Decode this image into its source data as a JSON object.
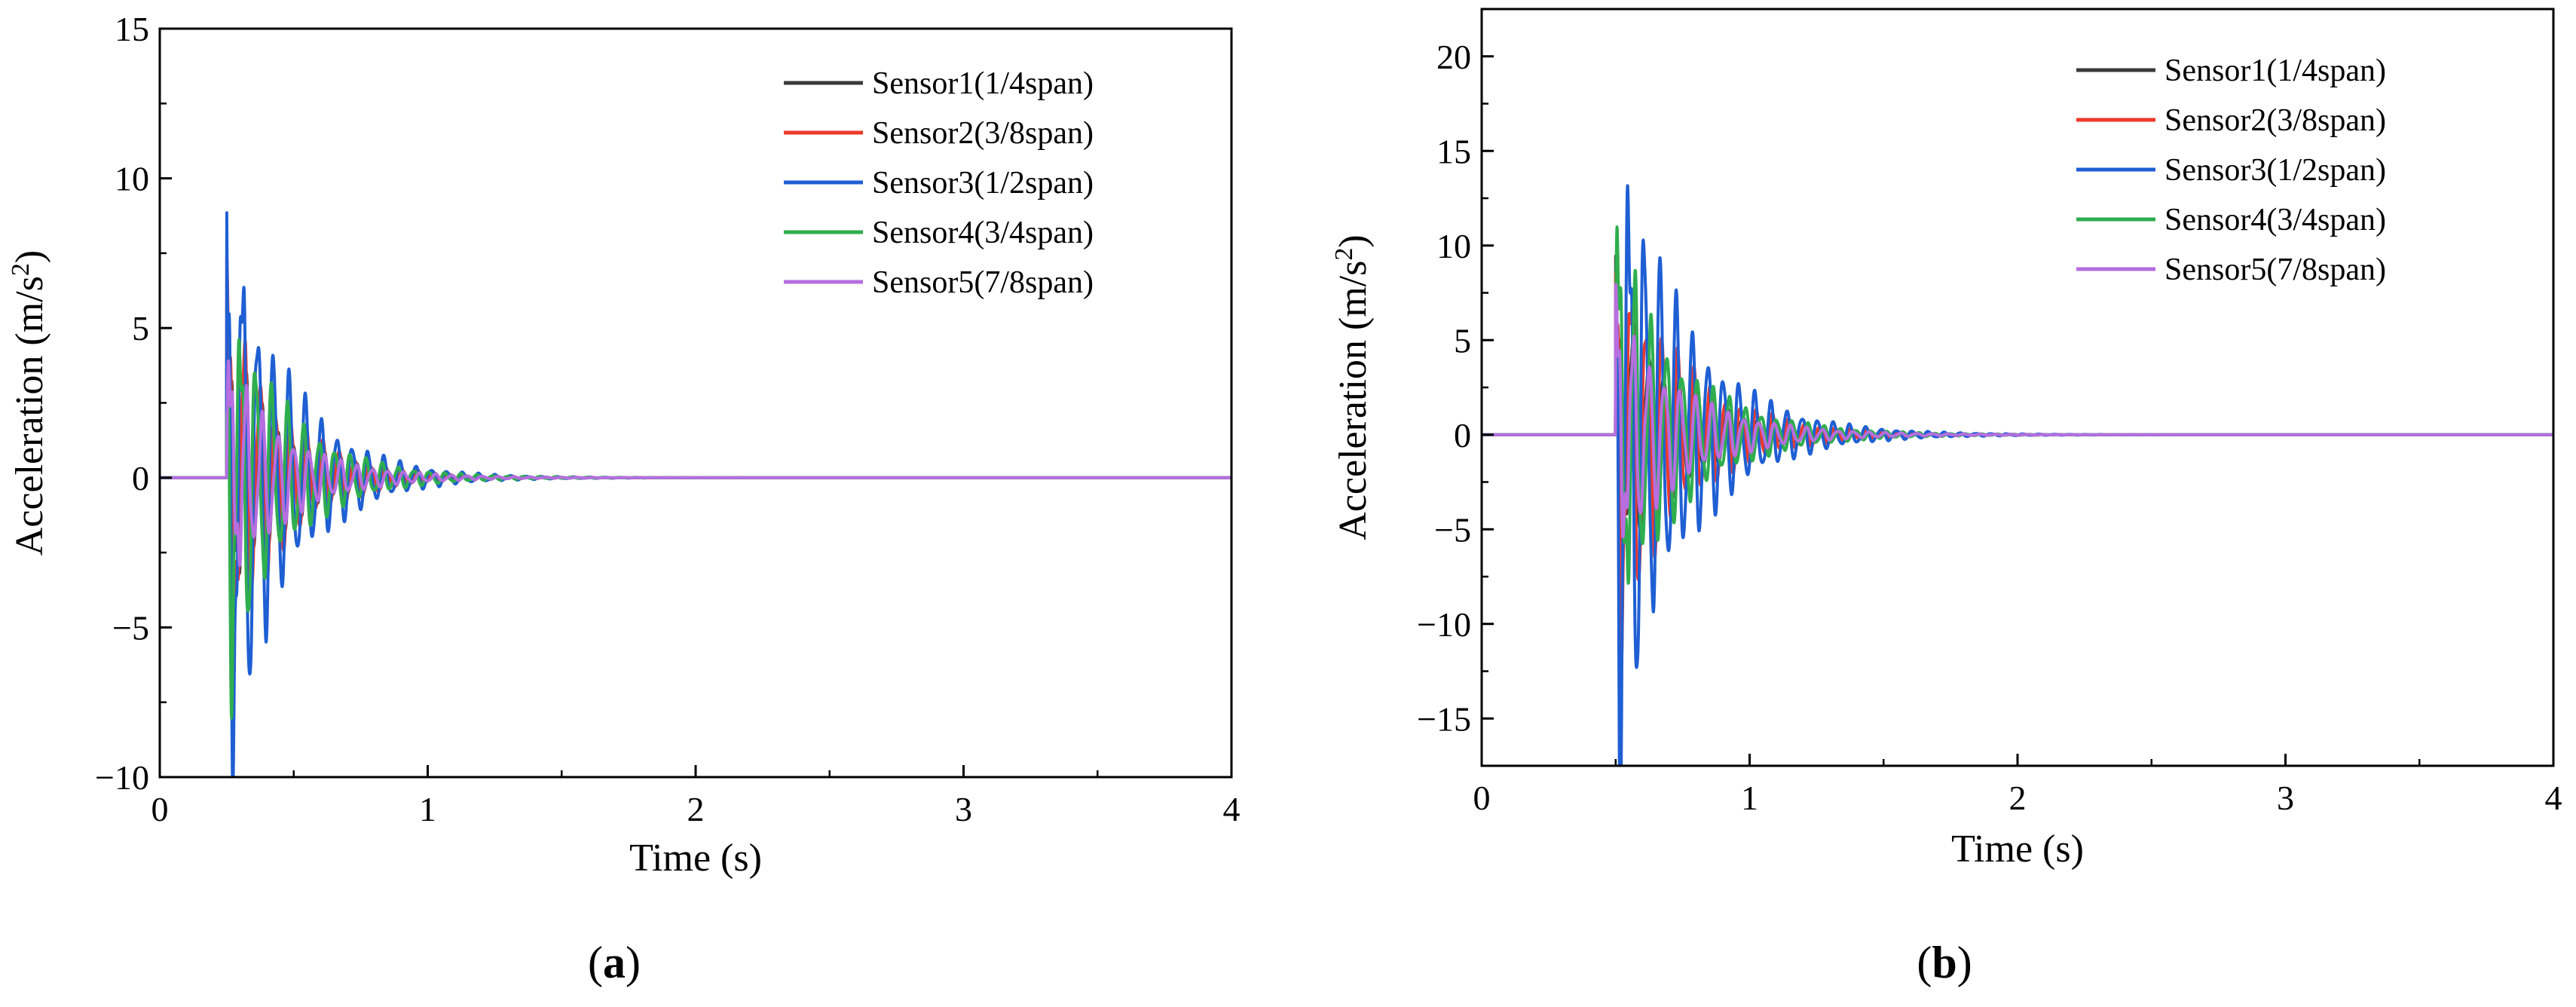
{
  "colors": {
    "sensor1": "#3a3a3a",
    "sensor2": "#ee3a2c",
    "sensor3": "#1f5fd4",
    "sensor4": "#2fae4e",
    "sensor5": "#b66ee0"
  },
  "chart_data": [
    {
      "type": "line",
      "panel_label": "a",
      "title": "",
      "xlabel": "Time (s)",
      "ylabel_main": "Acceleration (m/s",
      "ylabel_sup": "2",
      "ylabel_end": ")",
      "xlim": [
        0,
        4
      ],
      "ylim": [
        -10,
        15
      ],
      "xticks": [
        0,
        1,
        2,
        3,
        4
      ],
      "xtick_labels": [
        "0",
        "1",
        "2",
        "3",
        "4"
      ],
      "yticks": [
        -10,
        -5,
        0,
        5,
        10,
        15
      ],
      "ytick_labels": [
        "−10",
        "−5",
        "0",
        "5",
        "10",
        "15"
      ],
      "legend_position": "top-right",
      "series": [
        {
          "name": "Sensor1(1/4span)",
          "color_key": "sensor1",
          "impact_time": 0.25,
          "amplitude": 4.0,
          "freq_hz": 17,
          "decay": 4.5
        },
        {
          "name": "Sensor2(3/8span)",
          "color_key": "sensor2",
          "impact_time": 0.25,
          "amplitude": 5.5,
          "freq_hz": 17,
          "decay": 4.5
        },
        {
          "name": "Sensor3(1/2span)",
          "color_key": "sensor3",
          "impact_time": 0.25,
          "amplitude": 9.0,
          "freq_hz": 17,
          "decay": 4.5
        },
        {
          "name": "Sensor4(3/4span)",
          "color_key": "sensor4",
          "impact_time": 0.25,
          "amplitude": 6.0,
          "freq_hz": 17,
          "decay": 4.5
        },
        {
          "name": "Sensor5(7/8span)",
          "color_key": "sensor5",
          "impact_time": 0.25,
          "amplitude": 3.5,
          "freq_hz": 17,
          "decay": 4.5
        }
      ]
    },
    {
      "type": "line",
      "panel_label": "b",
      "title": "",
      "xlabel": "Time (s)",
      "ylabel_main": "Acceleration (m/s",
      "ylabel_sup": "2",
      "ylabel_end": ")",
      "xlim": [
        0,
        4
      ],
      "ylim": [
        -17.5,
        22.5
      ],
      "xticks": [
        0,
        1,
        2,
        3,
        4
      ],
      "xtick_labels": [
        "0",
        "1",
        "2",
        "3",
        "4"
      ],
      "yticks": [
        -15,
        -10,
        -5,
        0,
        5,
        10,
        15,
        20
      ],
      "ytick_labels": [
        "−15",
        "−10",
        "−5",
        "0",
        "5",
        "10",
        "15",
        "20"
      ],
      "legend_position": "top-right",
      "series": [
        {
          "name": "Sensor1(1/4span)",
          "color_key": "sensor1",
          "impact_time": 0.5,
          "amplitude": 7.0,
          "freq_hz": 17,
          "decay": 4.0
        },
        {
          "name": "Sensor2(3/8span)",
          "color_key": "sensor2",
          "impact_time": 0.5,
          "amplitude": 10.0,
          "freq_hz": 17,
          "decay": 4.0
        },
        {
          "name": "Sensor3(1/2span)",
          "color_key": "sensor3",
          "impact_time": 0.5,
          "amplitude": 16.0,
          "freq_hz": 17,
          "decay": 4.0
        },
        {
          "name": "Sensor4(3/4span)",
          "color_key": "sensor4",
          "impact_time": 0.5,
          "amplitude": 9.5,
          "freq_hz": 17,
          "decay": 4.0
        },
        {
          "name": "Sensor5(7/8span)",
          "color_key": "sensor5",
          "impact_time": 0.5,
          "amplitude": 6.0,
          "freq_hz": 17,
          "decay": 4.0
        }
      ]
    }
  ]
}
